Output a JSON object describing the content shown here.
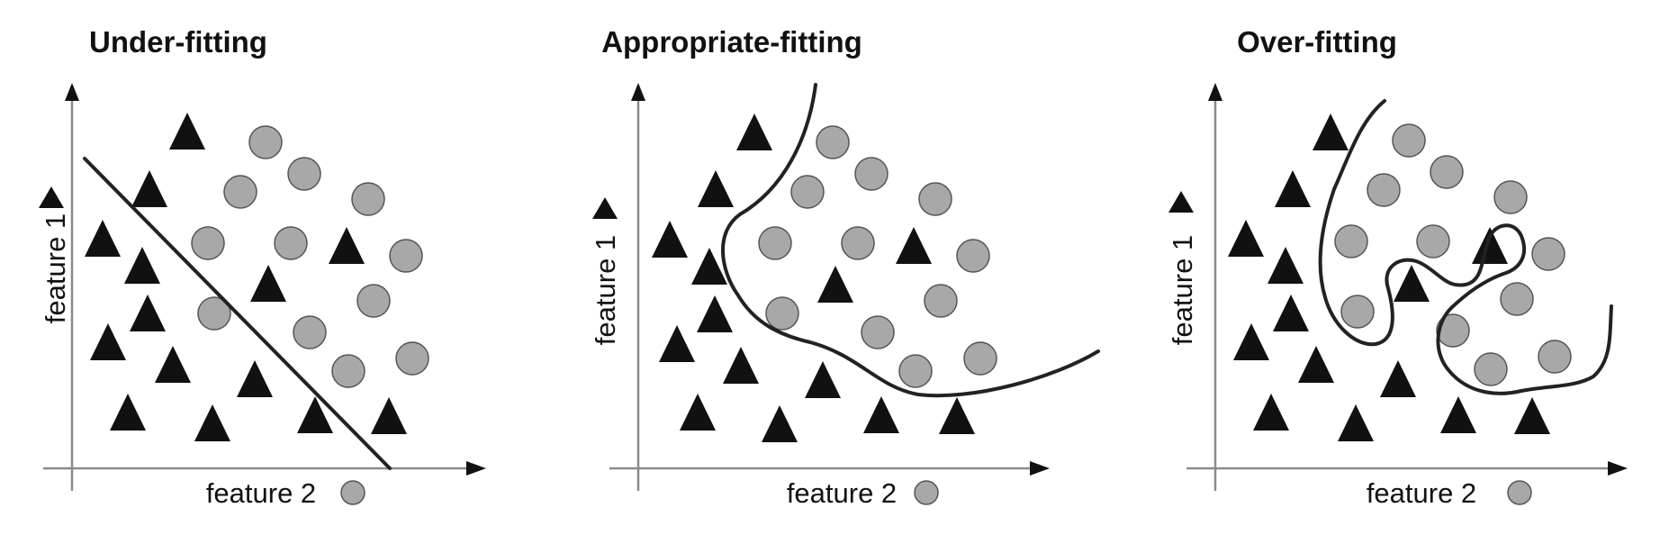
{
  "panels": [
    {
      "id": "under-fitting",
      "title": "Under-fitting",
      "xlabel": "feature 2",
      "ylabel": "feature 1"
    },
    {
      "id": "appropriate-fitting",
      "title": "Appropriate-fitting",
      "xlabel": "feature 2",
      "ylabel": "feature 1"
    },
    {
      "id": "over-fitting",
      "title": "Over-fitting",
      "xlabel": "feature 2",
      "ylabel": "feature 1"
    }
  ],
  "legend": {
    "triangle_class": "triangle-icon",
    "circle_class": "circle-icon"
  },
  "colors": {
    "triangle": "#111111",
    "circle": "#a8a8a8",
    "axis": "#8a8a8a",
    "boundary": "#222222"
  }
}
